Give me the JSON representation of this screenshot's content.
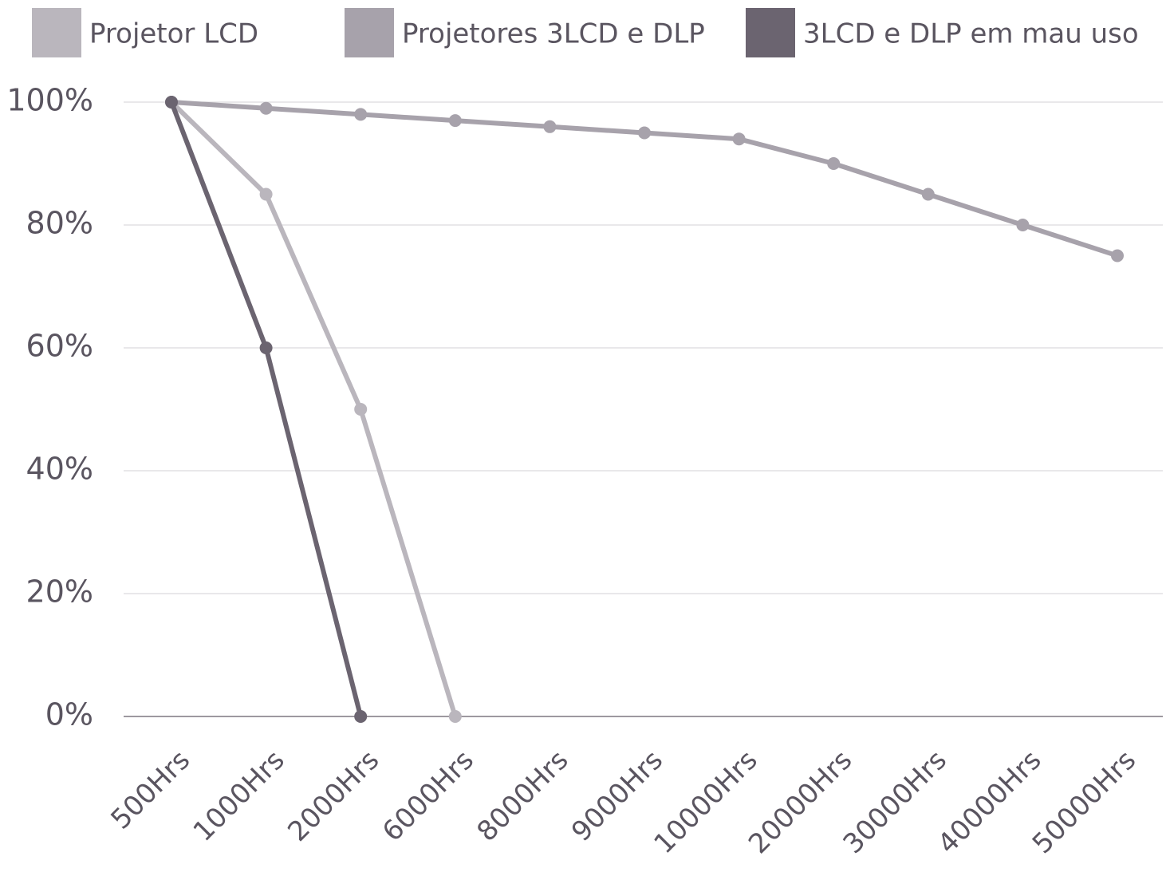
{
  "chart_data": {
    "type": "line",
    "categories": [
      "500Hrs",
      "1000Hrs",
      "2000Hrs",
      "6000Hrs",
      "8000Hrs",
      "9000Hrs",
      "10000Hrs",
      "20000Hrs",
      "30000Hrs",
      "40000Hrs",
      "50000Hrs"
    ],
    "series": [
      {
        "name": "Projetor LCD",
        "color": "#bab6bd",
        "values": [
          100,
          85,
          50,
          0,
          null,
          null,
          null,
          null,
          null,
          null,
          null
        ]
      },
      {
        "name": "Projetores 3LCD e DLP",
        "color": "#a7a2ab",
        "values": [
          100,
          99,
          98,
          97,
          96,
          95,
          94,
          90,
          85,
          80,
          75
        ]
      },
      {
        "name": "3LCD e DLP em mau uso",
        "color": "#6b6470",
        "values": [
          100,
          60,
          0,
          null,
          null,
          null,
          null,
          null,
          null,
          null,
          null
        ]
      }
    ],
    "ylim": [
      0,
      100
    ],
    "yticks": [
      {
        "value": 0,
        "label": "0%"
      },
      {
        "value": 20,
        "label": "20%"
      },
      {
        "value": 40,
        "label": "40%"
      },
      {
        "value": 60,
        "label": "60%"
      },
      {
        "value": 80,
        "label": "80%"
      },
      {
        "value": 100,
        "label": "100%"
      }
    ],
    "grid": true,
    "legend": "top"
  }
}
